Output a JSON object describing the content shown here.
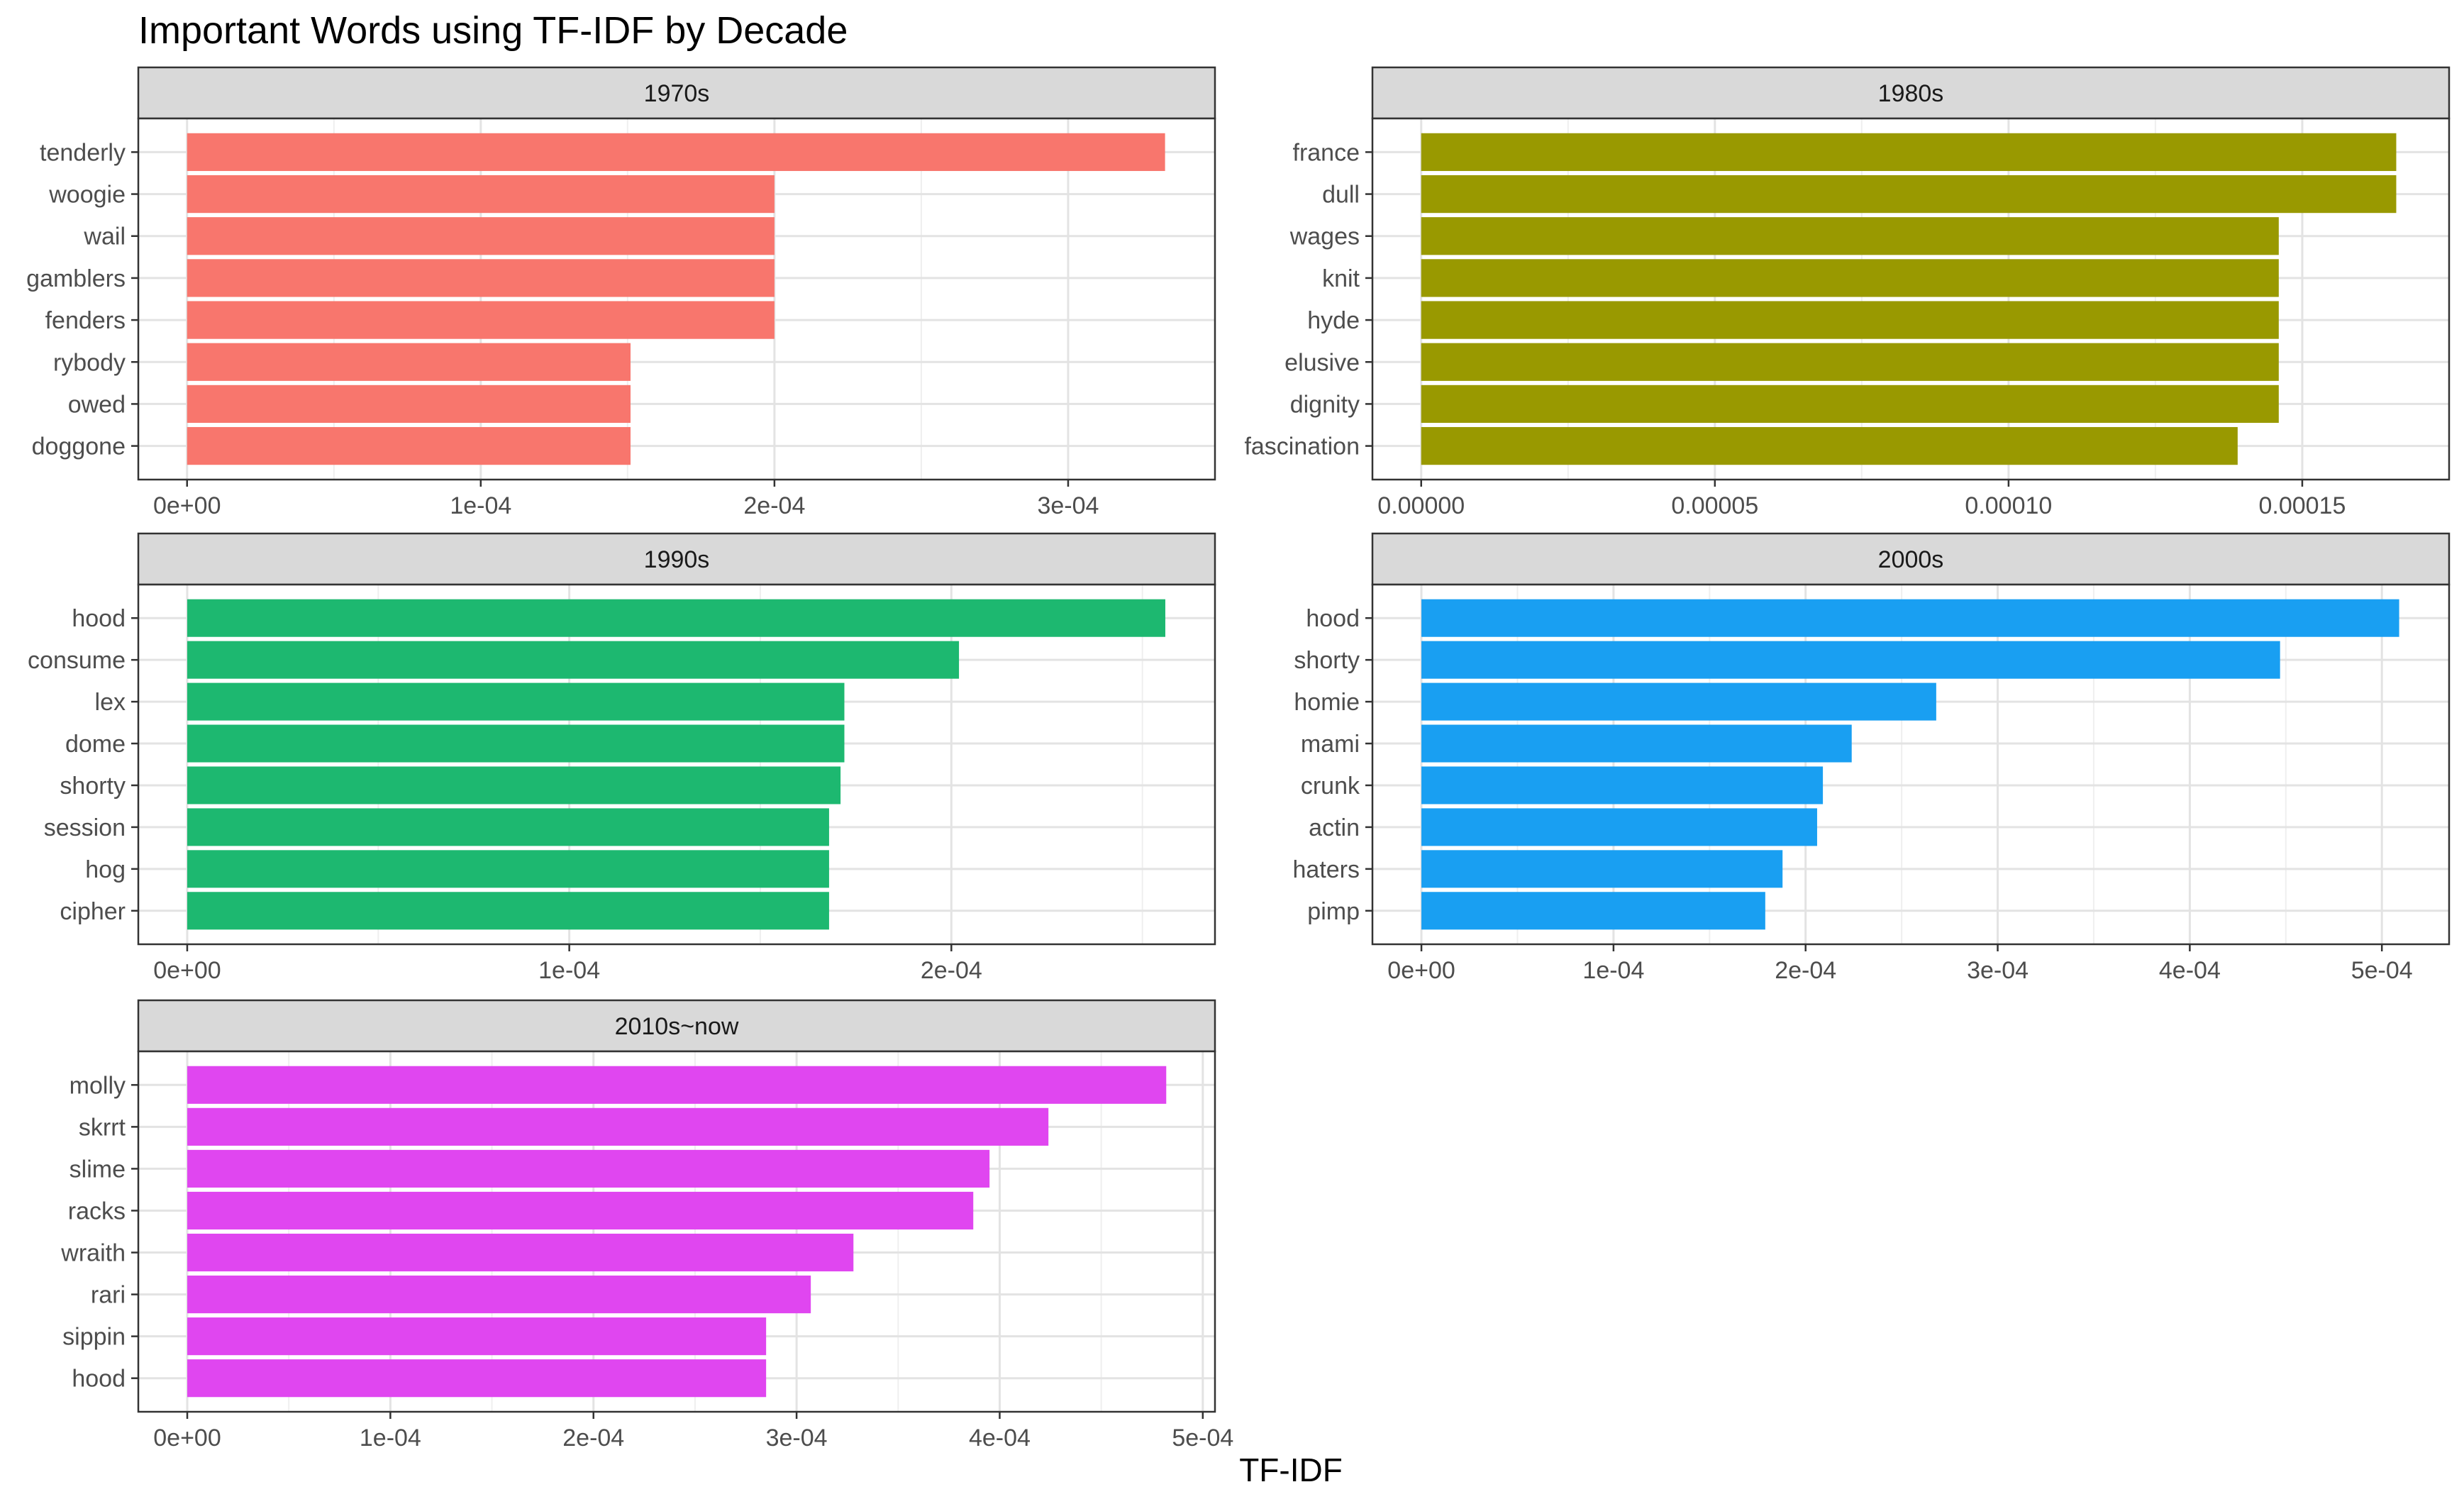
{
  "chart_title": "Important Words using TF-IDF by Decade",
  "x_axis_label": "TF-IDF",
  "chart_data": [
    {
      "type": "bar",
      "orientation": "horizontal",
      "facet": "1970s",
      "color": "#F8766D",
      "categories": [
        "tenderly",
        "woogie",
        "wail",
        "gamblers",
        "fenders",
        "rybody",
        "owed",
        "doggone"
      ],
      "values": [
        0.000333,
        0.0002,
        0.0002,
        0.0002,
        0.0002,
        0.000151,
        0.000151,
        0.000151
      ],
      "xlim": [
        -1.66e-05,
        0.00035
      ],
      "xticks": [
        0,
        0.0001,
        0.0002,
        0.0003
      ],
      "xtick_labels": [
        "0e+00",
        "1e-04",
        "2e-04",
        "3e-04"
      ]
    },
    {
      "type": "bar",
      "orientation": "horizontal",
      "facet": "1980s",
      "color": "#999900",
      "categories": [
        "france",
        "dull",
        "wages",
        "knit",
        "hyde",
        "elusive",
        "dignity",
        "fascination"
      ],
      "values": [
        0.000166,
        0.000166,
        0.000146,
        0.000146,
        0.000146,
        0.000146,
        0.000146,
        0.000139
      ],
      "xlim": [
        -8.3e-06,
        0.000175
      ],
      "xticks": [
        0,
        5e-05,
        0.0001,
        0.00015
      ],
      "xtick_labels": [
        "0.00000",
        "0.00005",
        "0.00010",
        "0.00015"
      ]
    },
    {
      "type": "bar",
      "orientation": "horizontal",
      "facet": "1990s",
      "color": "#1DB870",
      "categories": [
        "hood",
        "consume",
        "lex",
        "dome",
        "shorty",
        "session",
        "hog",
        "cipher"
      ],
      "values": [
        0.000256,
        0.000202,
        0.000172,
        0.000172,
        0.000171,
        0.000168,
        0.000168,
        0.000168
      ],
      "xlim": [
        -1.28e-05,
        0.000269
      ],
      "xticks": [
        0,
        0.0001,
        0.0002
      ],
      "xtick_labels": [
        "0e+00",
        "1e-04",
        "2e-04"
      ]
    },
    {
      "type": "bar",
      "orientation": "horizontal",
      "facet": "2000s",
      "color": "#199FF2",
      "categories": [
        "hood",
        "shorty",
        "homie",
        "mami",
        "crunk",
        "actin",
        "haters",
        "pimp"
      ],
      "values": [
        0.000509,
        0.000447,
        0.000268,
        0.000224,
        0.000209,
        0.000206,
        0.000188,
        0.000179
      ],
      "xlim": [
        -2.55e-05,
        0.000535
      ],
      "xticks": [
        0,
        0.0001,
        0.0002,
        0.0003,
        0.0004,
        0.0005
      ],
      "xtick_labels": [
        "0e+00",
        "1e-04",
        "2e-04",
        "3e-04",
        "4e-04",
        "5e-04"
      ]
    },
    {
      "type": "bar",
      "orientation": "horizontal",
      "facet": "2010s~now",
      "color": "#E046F0",
      "categories": [
        "molly",
        "skrrt",
        "slime",
        "racks",
        "wraith",
        "rari",
        "sippin",
        "hood"
      ],
      "values": [
        0.000482,
        0.000424,
        0.000395,
        0.000387,
        0.000328,
        0.000307,
        0.000285,
        0.000285
      ],
      "xlim": [
        -2.41e-05,
        0.000506
      ],
      "xticks": [
        0,
        0.0001,
        0.0002,
        0.0003,
        0.0004,
        0.0005
      ],
      "xtick_labels": [
        "0e+00",
        "1e-04",
        "2e-04",
        "3e-04",
        "4e-04",
        "5e-04"
      ]
    }
  ]
}
